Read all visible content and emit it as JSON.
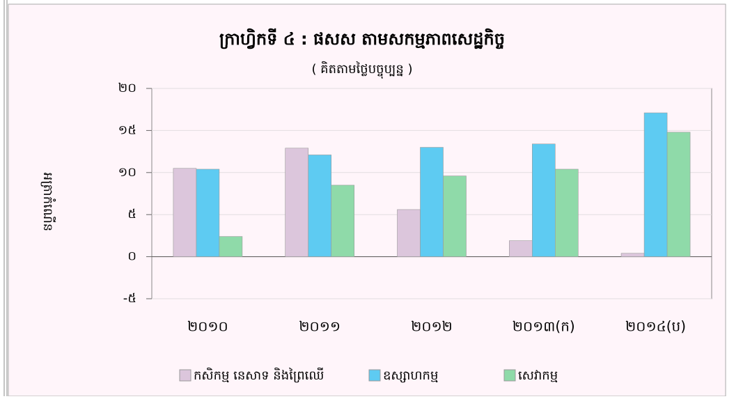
{
  "chart_data": {
    "type": "bar",
    "title": "ក្រាហ្វិកទី ៤ : ផសស តាមសកម្មភាពសេដ្ឋកិច្ច",
    "subtitle": "( គិតតាមថ្លៃបច្ចុប្បន្ន )",
    "y_label": "អត្រាកំណើន",
    "categories": [
      "២០១០",
      "២០១១",
      "២០១២",
      "២០១៣(ក)",
      "២០១៤(ប)"
    ],
    "series": [
      {
        "name": "កសិកម្ម នេសាទ និងព្រៃឈើ",
        "color": "#dcc6dc",
        "values": [
          10.5,
          12.9,
          5.6,
          1.9,
          0.4
        ]
      },
      {
        "name": "ឧស្សាហកម្ម",
        "color": "#5ecbf2",
        "values": [
          10.4,
          12.1,
          13.0,
          13.4,
          17.1
        ]
      },
      {
        "name": "សេវាកម្ម",
        "color": "#8fdaa9",
        "values": [
          2.4,
          8.5,
          9.6,
          10.4,
          14.8
        ]
      }
    ],
    "ylim": [
      -5,
      20
    ],
    "yticks": [
      {
        "value": -5,
        "label": "-៥"
      },
      {
        "value": 0,
        "label": "០"
      },
      {
        "value": 5,
        "label": "៥"
      },
      {
        "value": 10,
        "label": "១០"
      },
      {
        "value": 15,
        "label": "១៥"
      },
      {
        "value": 20,
        "label": "២០"
      }
    ],
    "grid": true
  }
}
